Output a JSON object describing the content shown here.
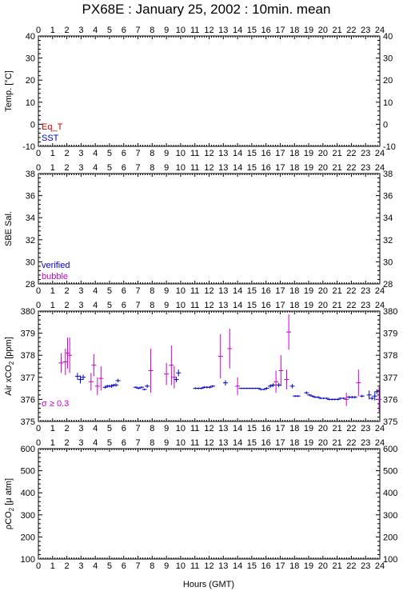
{
  "title": "PX68E : January 25, 2002 : 10min. mean",
  "x_axis_label": "Hours (GMT)",
  "colors": {
    "frame": "#000000",
    "red": "#cc0000",
    "blue": "#0000cc",
    "magenta": "#cc00cc"
  },
  "chart_data": [
    {
      "type": "scatter",
      "ylabel": "Temp. [°C]",
      "xlim": [
        0,
        24
      ],
      "ylim": [
        -10,
        40
      ],
      "y_ticks": [
        -10,
        0,
        10,
        20,
        30,
        40
      ],
      "x_ticks": [
        0,
        1,
        2,
        3,
        4,
        5,
        6,
        7,
        8,
        9,
        10,
        11,
        12,
        13,
        14,
        15,
        16,
        17,
        18,
        19,
        20,
        21,
        22,
        23,
        24
      ],
      "legend_position": "bottom-left",
      "series": [
        {
          "name": "Eq_T",
          "color": "red",
          "points": []
        },
        {
          "name": "SST",
          "color": "blue",
          "points": []
        }
      ]
    },
    {
      "type": "scatter",
      "ylabel": "SBE Sal.",
      "xlim": [
        0,
        24
      ],
      "ylim": [
        28,
        38
      ],
      "y_ticks": [
        28,
        30,
        32,
        34,
        36,
        38
      ],
      "x_ticks": [
        0,
        1,
        2,
        3,
        4,
        5,
        6,
        7,
        8,
        9,
        10,
        11,
        12,
        13,
        14,
        15,
        16,
        17,
        18,
        19,
        20,
        21,
        22,
        23,
        24
      ],
      "legend_position": "bottom-left",
      "series": [
        {
          "name": "verified",
          "color": "blue",
          "points": []
        },
        {
          "name": "bubble",
          "color": "magenta",
          "points": []
        }
      ]
    },
    {
      "type": "scatter",
      "ylabel_main": "Air xCO",
      "ylabel_sub": "2",
      "ylabel_unit": " [ppm]",
      "xlim": [
        0,
        24
      ],
      "ylim": [
        375,
        380
      ],
      "y_ticks": [
        375,
        376,
        377,
        378,
        379,
        380
      ],
      "x_ticks": [
        0,
        1,
        2,
        3,
        4,
        5,
        6,
        7,
        8,
        9,
        10,
        11,
        12,
        13,
        14,
        15,
        16,
        17,
        18,
        19,
        20,
        21,
        22,
        23,
        24
      ],
      "annotation": "σ ≥ 0.3",
      "annotation_position": "bottom-left",
      "series": [
        {
          "name": "σ ≥ 0.3",
          "color": "magenta",
          "points": [
            {
              "x": 1.6,
              "y": 377.65,
              "err": 0.45
            },
            {
              "x": 1.9,
              "y": 377.7,
              "err": 0.6
            },
            {
              "x": 2.05,
              "y": 378.1,
              "err": 0.7
            },
            {
              "x": 2.2,
              "y": 378.0,
              "err": 0.8
            },
            {
              "x": 3.7,
              "y": 376.8,
              "err": 0.4
            },
            {
              "x": 3.9,
              "y": 377.55,
              "err": 0.5
            },
            {
              "x": 4.15,
              "y": 376.6,
              "err": 0.4
            },
            {
              "x": 4.4,
              "y": 376.95,
              "err": 0.55
            },
            {
              "x": 7.9,
              "y": 377.3,
              "err": 1.0
            },
            {
              "x": 9.0,
              "y": 377.15,
              "err": 0.5
            },
            {
              "x": 9.35,
              "y": 377.55,
              "err": 0.9
            },
            {
              "x": 9.55,
              "y": 377.0,
              "err": 0.5
            },
            {
              "x": 12.8,
              "y": 377.95,
              "err": 1.0
            },
            {
              "x": 13.45,
              "y": 378.3,
              "err": 0.9
            },
            {
              "x": 14.0,
              "y": 376.6,
              "err": 0.4
            },
            {
              "x": 16.7,
              "y": 376.8,
              "err": 0.5
            },
            {
              "x": 17.05,
              "y": 377.3,
              "err": 0.7
            },
            {
              "x": 17.45,
              "y": 376.9,
              "err": 0.45
            },
            {
              "x": 17.6,
              "y": 379.05,
              "err": 0.8
            },
            {
              "x": 21.65,
              "y": 376.0,
              "err": 0.3
            },
            {
              "x": 22.5,
              "y": 376.75,
              "err": 0.6
            },
            {
              "x": 23.95,
              "y": 376.0,
              "err": 0.55
            }
          ]
        },
        {
          "name": "verified",
          "color": "blue",
          "points": [
            {
              "x": 2.75,
              "y": 377.05,
              "err": 0.15
            },
            {
              "x": 2.95,
              "y": 376.9,
              "err": 0.18
            },
            {
              "x": 3.15,
              "y": 377.0,
              "err": 0.12
            },
            {
              "x": 4.7,
              "y": 376.55,
              "err": 0.06
            },
            {
              "x": 4.85,
              "y": 376.6,
              "err": 0.06
            },
            {
              "x": 5.0,
              "y": 376.6,
              "err": 0.06
            },
            {
              "x": 5.15,
              "y": 376.6,
              "err": 0.08
            },
            {
              "x": 5.3,
              "y": 376.65,
              "err": 0.06
            },
            {
              "x": 5.45,
              "y": 376.65,
              "err": 0.08
            },
            {
              "x": 5.6,
              "y": 376.85,
              "err": 0.08
            },
            {
              "x": 6.85,
              "y": 376.55,
              "err": 0.04
            },
            {
              "x": 7.05,
              "y": 376.5,
              "err": 0.04
            },
            {
              "x": 7.25,
              "y": 376.55,
              "err": 0.04
            },
            {
              "x": 7.45,
              "y": 376.45,
              "err": 0.04
            },
            {
              "x": 7.65,
              "y": 376.6,
              "err": 0.08
            },
            {
              "x": 9.7,
              "y": 376.9,
              "err": 0.12
            },
            {
              "x": 9.85,
              "y": 377.2,
              "err": 0.15
            },
            {
              "x": 11.05,
              "y": 376.5,
              "err": 0.04
            },
            {
              "x": 11.25,
              "y": 376.5,
              "err": 0.04
            },
            {
              "x": 11.45,
              "y": 376.5,
              "err": 0.04
            },
            {
              "x": 11.65,
              "y": 376.55,
              "err": 0.05
            },
            {
              "x": 11.85,
              "y": 376.55,
              "err": 0.05
            },
            {
              "x": 12.05,
              "y": 376.55,
              "err": 0.05
            },
            {
              "x": 12.25,
              "y": 376.6,
              "err": 0.05
            },
            {
              "x": 13.15,
              "y": 376.75,
              "err": 0.12
            },
            {
              "x": 14.25,
              "y": 376.5,
              "err": 0.03
            },
            {
              "x": 14.45,
              "y": 376.5,
              "err": 0.03
            },
            {
              "x": 14.65,
              "y": 376.5,
              "err": 0.03
            },
            {
              "x": 14.85,
              "y": 376.5,
              "err": 0.03
            },
            {
              "x": 15.05,
              "y": 376.5,
              "err": 0.03
            },
            {
              "x": 15.25,
              "y": 376.5,
              "err": 0.03
            },
            {
              "x": 15.45,
              "y": 376.5,
              "err": 0.03
            },
            {
              "x": 15.65,
              "y": 376.45,
              "err": 0.04
            },
            {
              "x": 15.85,
              "y": 376.45,
              "err": 0.04
            },
            {
              "x": 16.05,
              "y": 376.5,
              "err": 0.05
            },
            {
              "x": 16.3,
              "y": 376.6,
              "err": 0.08
            },
            {
              "x": 16.5,
              "y": 376.65,
              "err": 0.08
            },
            {
              "x": 16.9,
              "y": 376.65,
              "err": 0.1
            },
            {
              "x": 17.85,
              "y": 376.6,
              "err": 0.1
            },
            {
              "x": 18.05,
              "y": 376.15,
              "err": 0.04
            },
            {
              "x": 18.25,
              "y": 376.15,
              "err": 0.04
            },
            {
              "x": 18.85,
              "y": 376.3,
              "err": 0.06
            },
            {
              "x": 19.05,
              "y": 376.2,
              "err": 0.04
            },
            {
              "x": 19.25,
              "y": 376.15,
              "err": 0.04
            },
            {
              "x": 19.45,
              "y": 376.1,
              "err": 0.04
            },
            {
              "x": 19.65,
              "y": 376.1,
              "err": 0.04
            },
            {
              "x": 19.85,
              "y": 376.05,
              "err": 0.04
            },
            {
              "x": 20.05,
              "y": 376.05,
              "err": 0.04
            },
            {
              "x": 20.25,
              "y": 376.05,
              "err": 0.04
            },
            {
              "x": 20.45,
              "y": 376.0,
              "err": 0.04
            },
            {
              "x": 20.65,
              "y": 376.0,
              "err": 0.04
            },
            {
              "x": 20.85,
              "y": 376.0,
              "err": 0.04
            },
            {
              "x": 21.05,
              "y": 376.0,
              "err": 0.04
            },
            {
              "x": 21.25,
              "y": 376.05,
              "err": 0.04
            },
            {
              "x": 21.45,
              "y": 376.05,
              "err": 0.04
            },
            {
              "x": 21.85,
              "y": 376.1,
              "err": 0.06
            },
            {
              "x": 22.05,
              "y": 376.1,
              "err": 0.06
            },
            {
              "x": 22.25,
              "y": 376.1,
              "err": 0.06
            },
            {
              "x": 22.75,
              "y": 376.15,
              "err": 0.06
            },
            {
              "x": 23.25,
              "y": 376.2,
              "err": 0.2
            },
            {
              "x": 23.45,
              "y": 376.05,
              "err": 0.08
            },
            {
              "x": 23.65,
              "y": 376.15,
              "err": 0.2
            },
            {
              "x": 23.8,
              "y": 376.35,
              "err": 0.1
            }
          ]
        }
      ]
    },
    {
      "type": "scatter",
      "ylabel_prefix": "ρCO",
      "ylabel_sub": "2",
      "ylabel_unit": " [μ atm]",
      "xlim": [
        0,
        24
      ],
      "ylim": [
        100,
        600
      ],
      "y_ticks": [
        100,
        200,
        300,
        400,
        500,
        600
      ],
      "x_ticks": [
        0,
        1,
        2,
        3,
        4,
        5,
        6,
        7,
        8,
        9,
        10,
        11,
        12,
        13,
        14,
        15,
        16,
        17,
        18,
        19,
        20,
        21,
        22,
        23,
        24
      ],
      "series": []
    }
  ]
}
